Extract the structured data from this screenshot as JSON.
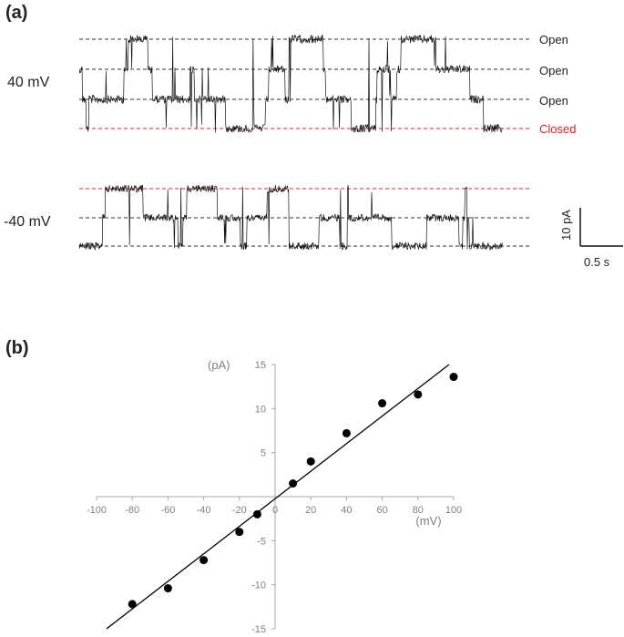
{
  "panel_a": {
    "label": "(a)",
    "trace_pos": {
      "voltage_label": "40 mV",
      "levels": [
        {
          "name": "Open",
          "color": "#333333"
        },
        {
          "name": "Open",
          "color": "#333333"
        },
        {
          "name": "Open",
          "color": "#333333"
        },
        {
          "name": "Closed",
          "color": "#e02020"
        }
      ]
    },
    "trace_neg": {
      "voltage_label": "-40 mV",
      "levels": [
        {
          "name": "",
          "color": "#e02020"
        },
        {
          "name": "",
          "color": "#333333"
        },
        {
          "name": "",
          "color": "#333333"
        }
      ]
    },
    "scale_bar": {
      "y_label": "10 pA",
      "x_label": "0.5 s"
    }
  },
  "panel_b": {
    "label": "(b)"
  },
  "chart_data": {
    "type": "scatter",
    "xlabel": "(mV)",
    "ylabel": "(pA)",
    "xlim": [
      -100,
      100
    ],
    "ylim": [
      -15,
      15
    ],
    "xticks": [
      -100,
      -80,
      -60,
      -40,
      -20,
      0,
      20,
      40,
      60,
      80,
      100
    ],
    "yticks": [
      -15,
      -10,
      -5,
      0,
      5,
      10,
      15
    ],
    "series": [
      {
        "x": [
          -80,
          -60,
          -40,
          -20,
          -10,
          10,
          20,
          40,
          60,
          80,
          100
        ],
        "y": [
          -12.2,
          -10.4,
          -7.2,
          -4.0,
          -2.0,
          1.5,
          4.0,
          7.2,
          10.6,
          11.6,
          13.6
        ],
        "color": "#000000"
      }
    ],
    "fit_line": {
      "x": [
        -100,
        100
      ],
      "y": [
        -15.2,
        15.0
      ],
      "color": "#000000"
    },
    "grid": false,
    "legend": "none"
  }
}
